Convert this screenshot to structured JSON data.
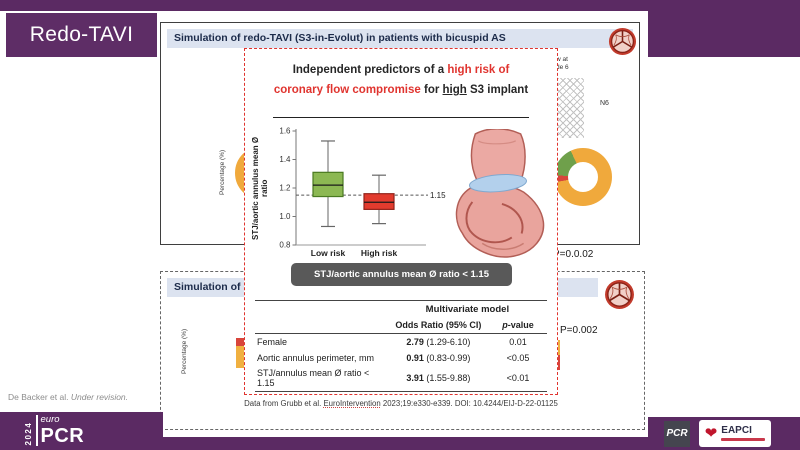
{
  "slide": {
    "section_title": "Redo-TAVI",
    "credit_text": "De Backer et al.",
    "credit_note": "Under revision."
  },
  "panel_top": {
    "header": "Simulation of redo-TAVI (S3-in-Evolut) in patients with bicuspid AS",
    "p_value": "P=0.0.02",
    "axis_label": "Percentage (%)",
    "fragment_line1": "w at",
    "fragment_line2": "de 6",
    "fragment_stent": "N6"
  },
  "panel_bottom": {
    "header_visible": "Simulation of",
    "p_value": "P=0.002",
    "axis_label": "Percentage (%)"
  },
  "popup": {
    "title_seg1": "Independent predictors of a ",
    "title_seg2_red": "high risk of",
    "title_seg3_red": "coronary flow compromise",
    "title_seg4": " for ",
    "title_seg5_underlined": "high",
    "title_seg6": " S3 implant",
    "threshold_button": "STJ/aortic annulus mean Ø ratio < 1.15",
    "citation_seg1": "Data from Grubb et al. ",
    "citation_seg2_underlined": "EuroIntervention",
    "citation_seg3": " 2023;19:e330-e339. DOI: 10.4244/EIJ-D-22-01125"
  },
  "chart_data": {
    "type": "boxplot",
    "ylabel": "STJ/aortic annulus mean Ø ratio",
    "ylim": [
      0.8,
      1.6
    ],
    "yticks": [
      0.8,
      1.0,
      1.2,
      1.4,
      1.6
    ],
    "categories": [
      "Low risk",
      "High risk"
    ],
    "series": [
      {
        "name": "Low risk",
        "color": "#8cb853",
        "edge": "#4a7a21",
        "min": 0.93,
        "q1": 1.14,
        "median": 1.22,
        "q3": 1.31,
        "max": 1.53
      },
      {
        "name": "High risk",
        "color": "#e23b2e",
        "edge": "#93221a",
        "min": 0.95,
        "q1": 1.05,
        "median": 1.1,
        "q3": 1.16,
        "max": 1.29
      }
    ],
    "threshold": 1.15,
    "threshold_label": "1.15",
    "grid": false,
    "legend": false
  },
  "table": {
    "group_header": "Multivariate model",
    "col_or": "Odds Ratio (95% CI)",
    "col_p_italic": "p",
    "col_p_rest": "-value",
    "rows": [
      {
        "label": "Female",
        "or": "2.79",
        "ci": " (1.29-6.10)",
        "p": "0.01"
      },
      {
        "label": "Aortic annulus perimeter, mm",
        "or": "0.91",
        "ci": " (0.83-0.99)",
        "p": "<0.05"
      },
      {
        "label": "STJ/annulus mean Ø ratio < 1.15",
        "or": "3.91",
        "ci": " (1.55-9.88)",
        "p": "<0.01"
      }
    ]
  },
  "footer": {
    "year": "2024",
    "euro": "euro",
    "pcr": "PCR",
    "pcr_square": "PCR",
    "eapci": "EAPCI"
  },
  "colors": {
    "purple": "#5b2a63",
    "header_band": "#dce3f0",
    "popup_border": "#e0342f",
    "accent_red": "#e0342f",
    "box_green": "#8cb853",
    "box_red": "#e23b2e",
    "button_gray": "#595959",
    "donut_yellow": "#f0a93c",
    "donut_green": "#6fa04b"
  }
}
